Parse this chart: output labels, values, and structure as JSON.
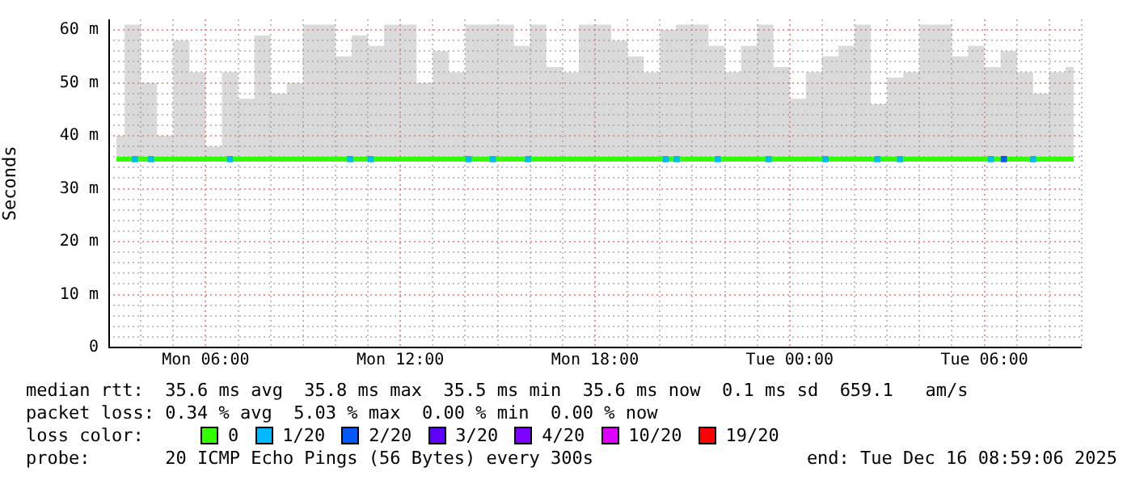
{
  "chart_data": {
    "type": "line",
    "ylabel": "Seconds",
    "legend": "bottom",
    "legend_title": "loss color:",
    "marker": "square",
    "grid": true,
    "xlim": [
      "2025-12-15T03:00",
      "2025-12-16T09:00"
    ],
    "xticks": [
      {
        "value": "2025-12-15T04:00",
        "label": null
      },
      {
        "value": "2025-12-15T05:00",
        "label": null
      },
      {
        "value": "2025-12-15T06:00",
        "label": "Mon 06:00"
      },
      {
        "value": "2025-12-15T07:00",
        "label": null
      },
      {
        "value": "2025-12-15T08:00",
        "label": null
      },
      {
        "value": "2025-12-15T09:00",
        "label": null
      },
      {
        "value": "2025-12-15T10:00",
        "label": null
      },
      {
        "value": "2025-12-15T11:00",
        "label": null
      },
      {
        "value": "2025-12-15T12:00",
        "label": "Mon 12:00"
      },
      {
        "value": "2025-12-15T13:00",
        "label": null
      },
      {
        "value": "2025-12-15T14:00",
        "label": null
      },
      {
        "value": "2025-12-15T15:00",
        "label": null
      },
      {
        "value": "2025-12-15T16:00",
        "label": null
      },
      {
        "value": "2025-12-15T17:00",
        "label": null
      },
      {
        "value": "2025-12-15T18:00",
        "label": "Mon 18:00"
      },
      {
        "value": "2025-12-15T19:00",
        "label": null
      },
      {
        "value": "2025-12-15T20:00",
        "label": null
      },
      {
        "value": "2025-12-15T21:00",
        "label": null
      },
      {
        "value": "2025-12-15T22:00",
        "label": null
      },
      {
        "value": "2025-12-15T23:00",
        "label": null
      },
      {
        "value": "2025-12-16T00:00",
        "label": "Tue 00:00"
      },
      {
        "value": "2025-12-16T01:00",
        "label": null
      },
      {
        "value": "2025-12-16T02:00",
        "label": null
      },
      {
        "value": "2025-12-16T03:00",
        "label": null
      },
      {
        "value": "2025-12-16T04:00",
        "label": null
      },
      {
        "value": "2025-12-16T05:00",
        "label": null
      },
      {
        "value": "2025-12-16T06:00",
        "label": "Tue 06:00"
      },
      {
        "value": "2025-12-16T07:00",
        "label": null
      },
      {
        "value": "2025-12-16T08:00",
        "label": null
      },
      {
        "value": "2025-12-16T09:00",
        "label": null
      }
    ],
    "ylim": [
      0,
      62
    ],
    "yticks": [
      0,
      {
        "value": 2,
        "label": null
      },
      {
        "value": 4,
        "label": null
      },
      {
        "value": 6,
        "label": null
      },
      {
        "value": 8,
        "label": null
      },
      {
        "value": 10,
        "label": "10 m"
      },
      {
        "value": 12,
        "label": null
      },
      {
        "value": 14,
        "label": null
      },
      {
        "value": 16,
        "label": null
      },
      {
        "value": 18,
        "label": null
      },
      {
        "value": 20,
        "label": "20 m"
      },
      {
        "value": 22,
        "label": null
      },
      {
        "value": 24,
        "label": null
      },
      {
        "value": 26,
        "label": null
      },
      {
        "value": 28,
        "label": null
      },
      {
        "value": 30,
        "label": "30 m"
      },
      {
        "value": 32,
        "label": null
      },
      {
        "value": 34,
        "label": null
      },
      {
        "value": 36,
        "label": null
      },
      {
        "value": 38,
        "label": null
      },
      {
        "value": 40,
        "label": "40 m"
      },
      {
        "value": 42,
        "label": null
      },
      {
        "value": 44,
        "label": null
      },
      {
        "value": 46,
        "label": null
      },
      {
        "value": 48,
        "label": null
      },
      {
        "value": 50,
        "label": "50 m"
      },
      {
        "value": 52,
        "label": null
      },
      {
        "value": 54,
        "label": null
      },
      {
        "value": 56,
        "label": null
      },
      {
        "value": 58,
        "label": null
      },
      {
        "value": 60,
        "label": "60 m"
      }
    ],
    "series": [
      {
        "name": "0",
        "color": "#33ff00",
        "marker": "none",
        "x": [
          "2025-12-15T03:15",
          "2025-12-15T03:45",
          "2025-12-15T04:15",
          "2025-12-15T04:45",
          "2025-12-15T05:15",
          "2025-12-15T05:45",
          "2025-12-15T06:15",
          "2025-12-15T06:45",
          "2025-12-15T07:15",
          "2025-12-15T07:45",
          "2025-12-15T08:15",
          "2025-12-15T08:45",
          "2025-12-15T09:15",
          "2025-12-15T09:45",
          "2025-12-15T10:15",
          "2025-12-15T10:45",
          "2025-12-15T11:15",
          "2025-12-15T11:45",
          "2025-12-15T12:15",
          "2025-12-15T12:45",
          "2025-12-15T13:15",
          "2025-12-15T13:45",
          "2025-12-15T14:15",
          "2025-12-15T14:45",
          "2025-12-15T15:15",
          "2025-12-15T15:45",
          "2025-12-15T16:15",
          "2025-12-15T16:45",
          "2025-12-15T17:15",
          "2025-12-15T17:45",
          "2025-12-15T18:15",
          "2025-12-15T18:45",
          "2025-12-15T19:15",
          "2025-12-15T19:45",
          "2025-12-15T20:15",
          "2025-12-15T20:45",
          "2025-12-15T21:15",
          "2025-12-15T21:45",
          "2025-12-15T22:15",
          "2025-12-15T22:45",
          "2025-12-15T23:15",
          "2025-12-15T23:45",
          "2025-12-16T00:15",
          "2025-12-16T00:45",
          "2025-12-16T01:15",
          "2025-12-16T01:45",
          "2025-12-16T02:15",
          "2025-12-16T02:45",
          "2025-12-16T03:15",
          "2025-12-16T03:45",
          "2025-12-16T04:15",
          "2025-12-16T04:45",
          "2025-12-16T05:15",
          "2025-12-16T05:45",
          "2025-12-16T06:15",
          "2025-12-16T06:45",
          "2025-12-16T07:15",
          "2025-12-16T07:45",
          "2025-12-16T08:15",
          "2025-12-16T08:45"
        ],
        "values": [
          35.6,
          35.6,
          35.6,
          35.6,
          35.6,
          35.6,
          35.6,
          35.6,
          35.6,
          35.6,
          35.6,
          35.6,
          35.6,
          35.6,
          35.6,
          35.6,
          35.6,
          35.6,
          35.6,
          35.6,
          35.6,
          35.6,
          35.6,
          35.6,
          35.6,
          35.6,
          35.6,
          35.6,
          35.6,
          35.6,
          35.6,
          35.6,
          35.6,
          35.6,
          35.6,
          35.6,
          35.6,
          35.6,
          35.6,
          35.6,
          35.6,
          35.6,
          35.6,
          35.6,
          35.6,
          35.6,
          35.6,
          35.6,
          35.6,
          35.6,
          35.6,
          35.6,
          35.6,
          35.6,
          35.6,
          35.6,
          35.6,
          35.6,
          35.6,
          35.6
        ],
        "lower": [
          35.4,
          35.4,
          35.4,
          35.4,
          35.4,
          35.4,
          35.4,
          35.4,
          35.4,
          35.4,
          35.4,
          35.4,
          35.4,
          35.4,
          35.4,
          35.4,
          35.4,
          35.4,
          35.4,
          35.4,
          35.4,
          35.4,
          35.4,
          35.4,
          35.4,
          35.4,
          35.4,
          35.4,
          35.4,
          35.4,
          35.4,
          35.4,
          35.4,
          35.4,
          35.4,
          35.4,
          35.4,
          35.4,
          35.4,
          35.4,
          35.4,
          35.4,
          35.4,
          35.4,
          35.4,
          35.4,
          35.4,
          35.4,
          35.4,
          35.4,
          35.4,
          35.4,
          35.4,
          35.4,
          35.4,
          35.4,
          35.4,
          35.4,
          35.4,
          35.4
        ],
        "upper": [
          40,
          61,
          50,
          40,
          58,
          52,
          38,
          52,
          47,
          59,
          48,
          50,
          61,
          61,
          55,
          59,
          57,
          61,
          61,
          50,
          56,
          52,
          61,
          61,
          61,
          57,
          61,
          53,
          52,
          61,
          61,
          58,
          55,
          52,
          60,
          61,
          61,
          57,
          52,
          57,
          61,
          53,
          47,
          52,
          55,
          57,
          61,
          46,
          51,
          52,
          61,
          61,
          55,
          57,
          53,
          56,
          52,
          48,
          52,
          53
        ]
      },
      {
        "name": "1/20",
        "color": "#00b8ff",
        "type": "scatter",
        "x": [
          "2025-12-15T03:49",
          "2025-12-15T04:19",
          "2025-12-15T06:45",
          "2025-12-15T10:27",
          "2025-12-15T11:05",
          "2025-12-15T14:06",
          "2025-12-15T14:51",
          "2025-12-15T15:56",
          "2025-12-15T20:11",
          "2025-12-15T20:31",
          "2025-12-15T21:47",
          "2025-12-15T23:21",
          "2025-12-16T01:06",
          "2025-12-16T02:42",
          "2025-12-16T03:24",
          "2025-12-16T06:12",
          "2025-12-16T07:30"
        ],
        "values": [
          35.6,
          35.6,
          35.6,
          35.6,
          35.6,
          35.6,
          35.6,
          35.6,
          35.6,
          35.6,
          35.6,
          35.6,
          35.6,
          35.6,
          35.6,
          35.6,
          35.6
        ]
      },
      {
        "name": "2/20",
        "color": "#0059ff",
        "type": "scatter",
        "x": [
          "2025-12-16T06:36"
        ],
        "values": [
          35.6
        ]
      },
      {
        "name": "3/20",
        "color": "#5e00ff",
        "type": "scatter"
      },
      {
        "name": "4/20",
        "color": "#7e00ff",
        "type": "scatter"
      },
      {
        "name": "10/20",
        "color": "#dd00ff",
        "type": "scatter"
      },
      {
        "name": "19/20",
        "color": "#ff0000",
        "type": "scatter"
      }
    ],
    "annotations": [
      "median rtt:  35.6 ms avg  35.8 ms max  35.5 ms min  35.6 ms now  0.1 ms sd  659.1   am/s",
      "packet loss: 0.34 % avg  5.03 % max  0.00 % min  0.00 % now",
      "probe:       20 ICMP Echo Pings (56 Bytes) every 300s",
      "end: Tue Dec 16 08:59:06 2025"
    ]
  }
}
